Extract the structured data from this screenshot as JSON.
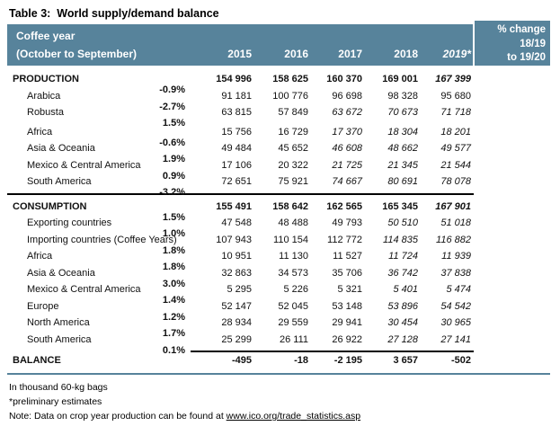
{
  "title": "Table 3:  World supply/demand balance",
  "colors": {
    "header_bg": "#57839b",
    "header_text": "#ffffff",
    "rule_dark": "#000000",
    "rule_accent": "#57839b"
  },
  "header": {
    "row_label_line1": "Coffee year",
    "row_label_line2": "(October to September)",
    "years": [
      "2015",
      "2016",
      "2017",
      "2018",
      "2019*"
    ],
    "pct_lines": [
      "% change",
      "18/19",
      "to 19/20"
    ]
  },
  "rows": [
    {
      "label": "PRODUCTION",
      "bold": true,
      "indent": false,
      "values": [
        "154 996",
        "158 625",
        "160 370",
        "169 001",
        "167 399"
      ],
      "styles": [
        "b",
        "b",
        "b",
        "b",
        "bi"
      ],
      "pct": "-0.9%"
    },
    {
      "label": "Arabica",
      "bold": false,
      "indent": true,
      "values": [
        "91 181",
        "100 776",
        "96 698",
        "98 328",
        "95 680"
      ],
      "styles": [
        "n",
        "n",
        "n",
        "n",
        "n"
      ],
      "pct": "-2.7%"
    },
    {
      "label": "Robusta",
      "bold": false,
      "indent": true,
      "values": [
        "63 815",
        "57 849",
        "63 672",
        "70 673",
        "71 718"
      ],
      "styles": [
        "n",
        "n",
        "i",
        "i",
        "i"
      ],
      "pct": "1.5%"
    },
    {
      "label": "Africa",
      "bold": false,
      "indent": true,
      "class": "gap-top",
      "values": [
        "15 756",
        "16 729",
        "17 370",
        "18 304",
        "18 201"
      ],
      "styles": [
        "n",
        "n",
        "i",
        "i",
        "i"
      ],
      "pct": "-0.6%"
    },
    {
      "label": "Asia & Oceania",
      "bold": false,
      "indent": true,
      "values": [
        "49 484",
        "45 652",
        "46 608",
        "48 662",
        "49 577"
      ],
      "styles": [
        "n",
        "n",
        "i",
        "i",
        "i"
      ],
      "pct": "1.9%"
    },
    {
      "label": "Mexico & Central America",
      "bold": false,
      "indent": true,
      "values": [
        "17 106",
        "20 322",
        "21 725",
        "21 345",
        "21 544"
      ],
      "styles": [
        "n",
        "n",
        "i",
        "i",
        "i"
      ],
      "pct": "0.9%"
    },
    {
      "label": "South America",
      "bold": false,
      "indent": true,
      "values": [
        "72 651",
        "75 921",
        "74 667",
        "80 691",
        "78 078"
      ],
      "styles": [
        "n",
        "n",
        "i",
        "i",
        "i"
      ],
      "pct": "-3.2%",
      "divider": "full"
    },
    {
      "label": "CONSUMPTION",
      "bold": true,
      "indent": false,
      "class": "section-top",
      "values": [
        "155 491",
        "158 642",
        "162 565",
        "165 345",
        "167 901"
      ],
      "styles": [
        "b",
        "b",
        "b",
        "b",
        "bi"
      ],
      "pct": "1.5%"
    },
    {
      "label": "Exporting countries",
      "bold": false,
      "indent": true,
      "values": [
        "47 548",
        "48 488",
        "49 793",
        "50 510",
        "51 018"
      ],
      "styles": [
        "n",
        "n",
        "n",
        "i",
        "i"
      ],
      "pct": "1.0%"
    },
    {
      "label": "Importing countries (Coffee Years)",
      "bold": false,
      "indent": true,
      "values": [
        "107 943",
        "110 154",
        "112 772",
        "114 835",
        "116 882"
      ],
      "styles": [
        "n",
        "n",
        "n",
        "i",
        "i"
      ],
      "pct": "1.8%"
    },
    {
      "label": "Africa",
      "bold": false,
      "indent": true,
      "values": [
        "10 951",
        "11 130",
        "11 527",
        "11 724",
        "11 939"
      ],
      "styles": [
        "n",
        "n",
        "n",
        "i",
        "i"
      ],
      "pct": "1.8%"
    },
    {
      "label": "Asia & Oceania",
      "bold": false,
      "indent": true,
      "values": [
        "32 863",
        "34 573",
        "35 706",
        "36 742",
        "37 838"
      ],
      "styles": [
        "n",
        "n",
        "n",
        "i",
        "i"
      ],
      "pct": "3.0%"
    },
    {
      "label": "Mexico & Central America",
      "bold": false,
      "indent": true,
      "values": [
        "5 295",
        "5 226",
        "5 321",
        "5 401",
        "5 474"
      ],
      "styles": [
        "n",
        "n",
        "n",
        "i",
        "i"
      ],
      "pct": "1.4%"
    },
    {
      "label": "Europe",
      "bold": false,
      "indent": true,
      "values": [
        "52 147",
        "52 045",
        "53 148",
        "53 896",
        "54 542"
      ],
      "styles": [
        "n",
        "n",
        "n",
        "i",
        "i"
      ],
      "pct": "1.2%"
    },
    {
      "label": "North America",
      "bold": false,
      "indent": true,
      "values": [
        "28 934",
        "29 559",
        "29 941",
        "30 454",
        "30 965"
      ],
      "styles": [
        "n",
        "n",
        "n",
        "i",
        "i"
      ],
      "pct": "1.7%"
    },
    {
      "label": "South America",
      "bold": false,
      "indent": true,
      "values": [
        "25 299",
        "26 111",
        "26 922",
        "27 128",
        "27 141"
      ],
      "styles": [
        "n",
        "n",
        "n",
        "i",
        "i"
      ],
      "pct": "0.1%",
      "divider": "nums"
    },
    {
      "label": "BALANCE",
      "bold": true,
      "indent": false,
      "class": "balance",
      "values": [
        "-495",
        "-18",
        "-2 195",
        "3 657",
        "-502"
      ],
      "styles": [
        "b",
        "b",
        "b",
        "b",
        "b"
      ],
      "pct": "",
      "divider": "accent"
    }
  ],
  "footnotes": [
    "In thousand 60-kg bags",
    "*preliminary estimates"
  ],
  "note": {
    "prefix": "Note: Data on crop year production can be found at ",
    "link": "www.ico.org/trade_statistics.asp"
  }
}
